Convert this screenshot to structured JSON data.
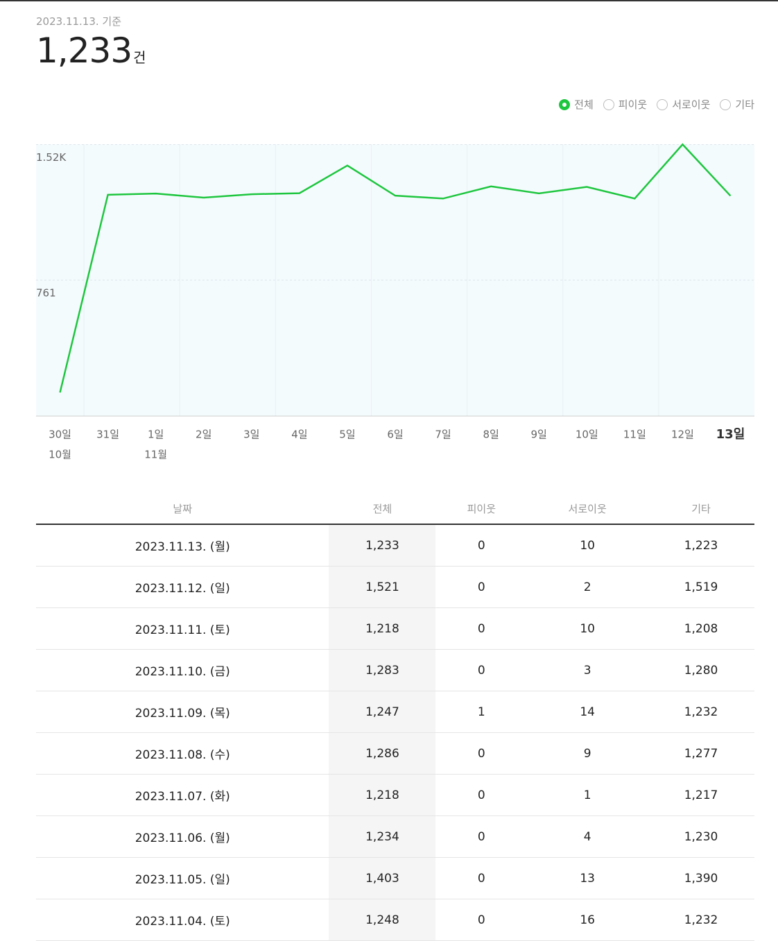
{
  "header": {
    "date": "2023.11.13. 기준",
    "count": "1,233",
    "unit": "건"
  },
  "filters": {
    "options": [
      "전체",
      "피이웃",
      "서로이웃",
      "기타"
    ],
    "selected": 0
  },
  "chart_data": {
    "type": "line",
    "color": "#1ec63f",
    "categories": [
      "30일",
      "31일",
      "1일",
      "2일",
      "3일",
      "4일",
      "5일",
      "6일",
      "7일",
      "8일",
      "9일",
      "10일",
      "11일",
      "12일",
      "13일"
    ],
    "month_labels": [
      "10월",
      null,
      "11월",
      null,
      null,
      null,
      null,
      null,
      null,
      null,
      null,
      null,
      null,
      null,
      null
    ],
    "values": [
      132,
      1239,
      1246,
      1223,
      1242,
      1248,
      1403,
      1234,
      1218,
      1286,
      1247,
      1283,
      1218,
      1521,
      1233
    ],
    "ylim": [
      0,
      1522
    ],
    "yticks": [
      761,
      {
        "value": 1520,
        "label": "1.52K"
      }
    ],
    "grid": true
  },
  "table": {
    "columns": [
      "날짜",
      "전체",
      "피이웃",
      "서로이웃",
      "기타"
    ],
    "rows": [
      [
        "2023.11.13. (월)",
        "1,233",
        "0",
        "10",
        "1,223"
      ],
      [
        "2023.11.12. (일)",
        "1,521",
        "0",
        "2",
        "1,519"
      ],
      [
        "2023.11.11. (토)",
        "1,218",
        "0",
        "10",
        "1,208"
      ],
      [
        "2023.11.10. (금)",
        "1,283",
        "0",
        "3",
        "1,280"
      ],
      [
        "2023.11.09. (목)",
        "1,247",
        "1",
        "14",
        "1,232"
      ],
      [
        "2023.11.08. (수)",
        "1,286",
        "0",
        "9",
        "1,277"
      ],
      [
        "2023.11.07. (화)",
        "1,218",
        "0",
        "1",
        "1,217"
      ],
      [
        "2023.11.06. (월)",
        "1,234",
        "0",
        "4",
        "1,230"
      ],
      [
        "2023.11.05. (일)",
        "1,403",
        "0",
        "13",
        "1,390"
      ],
      [
        "2023.11.04. (토)",
        "1,248",
        "0",
        "16",
        "1,232"
      ]
    ]
  }
}
